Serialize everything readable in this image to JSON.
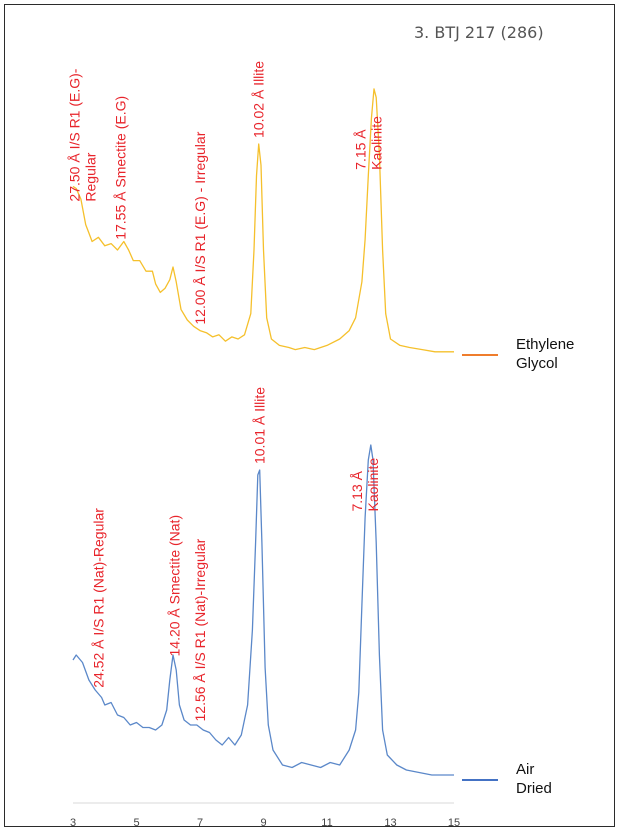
{
  "chart_data": {
    "type": "line",
    "title": "3. BTJ 217 (286)",
    "xlabel": "",
    "ylabel": "",
    "xlim": [
      3,
      15
    ],
    "x_ticks": [
      3,
      5,
      7,
      9,
      11,
      13,
      15
    ],
    "grid": false,
    "legend_placement": "right",
    "series": [
      {
        "name_lines": [
          "Ethylene",
          "Glycol"
        ],
        "color": "#f5c02c",
        "legend_color": "#ef7d2c",
        "points": [
          [
            3.0,
            0.8
          ],
          [
            3.1,
            0.79
          ],
          [
            3.25,
            0.74
          ],
          [
            3.4,
            0.62
          ],
          [
            3.5,
            0.58
          ],
          [
            3.6,
            0.54
          ],
          [
            3.8,
            0.56
          ],
          [
            4.0,
            0.52
          ],
          [
            4.2,
            0.53
          ],
          [
            4.4,
            0.5
          ],
          [
            4.6,
            0.54
          ],
          [
            4.75,
            0.5
          ],
          [
            4.9,
            0.45
          ],
          [
            5.1,
            0.45
          ],
          [
            5.3,
            0.4
          ],
          [
            5.5,
            0.4
          ],
          [
            5.6,
            0.34
          ],
          [
            5.75,
            0.3
          ],
          [
            5.9,
            0.32
          ],
          [
            6.05,
            0.36
          ],
          [
            6.15,
            0.42
          ],
          [
            6.25,
            0.35
          ],
          [
            6.4,
            0.22
          ],
          [
            6.6,
            0.17
          ],
          [
            6.8,
            0.14
          ],
          [
            7.0,
            0.12
          ],
          [
            7.2,
            0.11
          ],
          [
            7.4,
            0.09
          ],
          [
            7.6,
            0.1
          ],
          [
            7.8,
            0.07
          ],
          [
            8.0,
            0.09
          ],
          [
            8.2,
            0.08
          ],
          [
            8.4,
            0.1
          ],
          [
            8.6,
            0.2
          ],
          [
            8.7,
            0.5
          ],
          [
            8.78,
            0.85
          ],
          [
            8.85,
            1.0
          ],
          [
            8.92,
            0.9
          ],
          [
            9.0,
            0.5
          ],
          [
            9.1,
            0.18
          ],
          [
            9.25,
            0.08
          ],
          [
            9.5,
            0.05
          ],
          [
            9.8,
            0.04
          ],
          [
            10.0,
            0.03
          ],
          [
            10.3,
            0.04
          ],
          [
            10.6,
            0.03
          ],
          [
            11.0,
            0.05
          ],
          [
            11.4,
            0.08
          ],
          [
            11.7,
            0.12
          ],
          [
            11.9,
            0.18
          ],
          [
            12.1,
            0.35
          ],
          [
            12.2,
            0.55
          ],
          [
            12.3,
            0.85
          ],
          [
            12.4,
            1.12
          ],
          [
            12.48,
            1.26
          ],
          [
            12.55,
            1.22
          ],
          [
            12.65,
            0.95
          ],
          [
            12.75,
            0.5
          ],
          [
            12.85,
            0.2
          ],
          [
            13.0,
            0.08
          ],
          [
            13.3,
            0.05
          ],
          [
            13.6,
            0.04
          ],
          [
            14.0,
            0.03
          ],
          [
            14.4,
            0.02
          ],
          [
            14.7,
            0.02
          ],
          [
            15.0,
            0.02
          ]
        ]
      },
      {
        "name_lines": [
          "Air",
          "Dried"
        ],
        "color": "#5b88c9",
        "legend_color": "#4472c4",
        "points": [
          [
            3.0,
            0.48
          ],
          [
            3.1,
            0.5
          ],
          [
            3.3,
            0.47
          ],
          [
            3.5,
            0.4
          ],
          [
            3.7,
            0.36
          ],
          [
            3.9,
            0.33
          ],
          [
            4.0,
            0.3
          ],
          [
            4.2,
            0.31
          ],
          [
            4.4,
            0.26
          ],
          [
            4.6,
            0.25
          ],
          [
            4.8,
            0.22
          ],
          [
            5.0,
            0.23
          ],
          [
            5.2,
            0.21
          ],
          [
            5.4,
            0.21
          ],
          [
            5.6,
            0.2
          ],
          [
            5.8,
            0.22
          ],
          [
            5.95,
            0.28
          ],
          [
            6.05,
            0.4
          ],
          [
            6.15,
            0.5
          ],
          [
            6.25,
            0.44
          ],
          [
            6.35,
            0.3
          ],
          [
            6.5,
            0.24
          ],
          [
            6.7,
            0.22
          ],
          [
            6.9,
            0.22
          ],
          [
            7.1,
            0.2
          ],
          [
            7.3,
            0.19
          ],
          [
            7.5,
            0.16
          ],
          [
            7.7,
            0.14
          ],
          [
            7.9,
            0.17
          ],
          [
            8.1,
            0.14
          ],
          [
            8.3,
            0.18
          ],
          [
            8.5,
            0.3
          ],
          [
            8.65,
            0.6
          ],
          [
            8.75,
            0.95
          ],
          [
            8.82,
            1.22
          ],
          [
            8.88,
            1.24
          ],
          [
            8.95,
            0.95
          ],
          [
            9.05,
            0.45
          ],
          [
            9.15,
            0.22
          ],
          [
            9.3,
            0.12
          ],
          [
            9.6,
            0.06
          ],
          [
            9.9,
            0.05
          ],
          [
            10.2,
            0.07
          ],
          [
            10.5,
            0.06
          ],
          [
            10.8,
            0.05
          ],
          [
            11.1,
            0.07
          ],
          [
            11.4,
            0.06
          ],
          [
            11.7,
            0.12
          ],
          [
            11.9,
            0.2
          ],
          [
            12.0,
            0.35
          ],
          [
            12.1,
            0.7
          ],
          [
            12.2,
            1.05
          ],
          [
            12.3,
            1.28
          ],
          [
            12.38,
            1.34
          ],
          [
            12.45,
            1.28
          ],
          [
            12.55,
            0.95
          ],
          [
            12.65,
            0.5
          ],
          [
            12.75,
            0.2
          ],
          [
            12.9,
            0.1
          ],
          [
            13.2,
            0.06
          ],
          [
            13.5,
            0.04
          ],
          [
            13.9,
            0.03
          ],
          [
            14.3,
            0.02
          ],
          [
            14.7,
            0.02
          ],
          [
            15.0,
            0.02
          ]
        ]
      }
    ],
    "annotations": [
      {
        "series": 0,
        "x": 3.3,
        "lines": [
          "27.50 Å I/S R1 (E.G)-",
          "Regular"
        ]
      },
      {
        "series": 0,
        "x": 4.5,
        "lines": [
          "17.55 Å Smectite (E.G)"
        ]
      },
      {
        "series": 0,
        "x": 7.0,
        "lines": [
          "12.00 Å I/S R1 (E.G) - Irregular"
        ]
      },
      {
        "series": 0,
        "x": 8.85,
        "lines": [
          "10.02 Å Illite"
        ]
      },
      {
        "series": 0,
        "x": 12.3,
        "lines": [
          "7.15 Å",
          "Kaolinite"
        ]
      },
      {
        "series": 1,
        "x": 3.8,
        "lines": [
          "24.52  Å I/S R1 (Nat)-Regular"
        ]
      },
      {
        "series": 1,
        "x": 6.2,
        "lines": [
          "14.20 Å Smectite (Nat)"
        ]
      },
      {
        "series": 1,
        "x": 7.0,
        "lines": [
          "12.56 Å I/S R1 (Nat)-Irregular"
        ]
      },
      {
        "series": 1,
        "x": 8.88,
        "lines": [
          "10.01 Å Illite"
        ]
      },
      {
        "series": 1,
        "x": 12.2,
        "lines": [
          "7.13 Å",
          "Kaolinite"
        ]
      }
    ]
  }
}
